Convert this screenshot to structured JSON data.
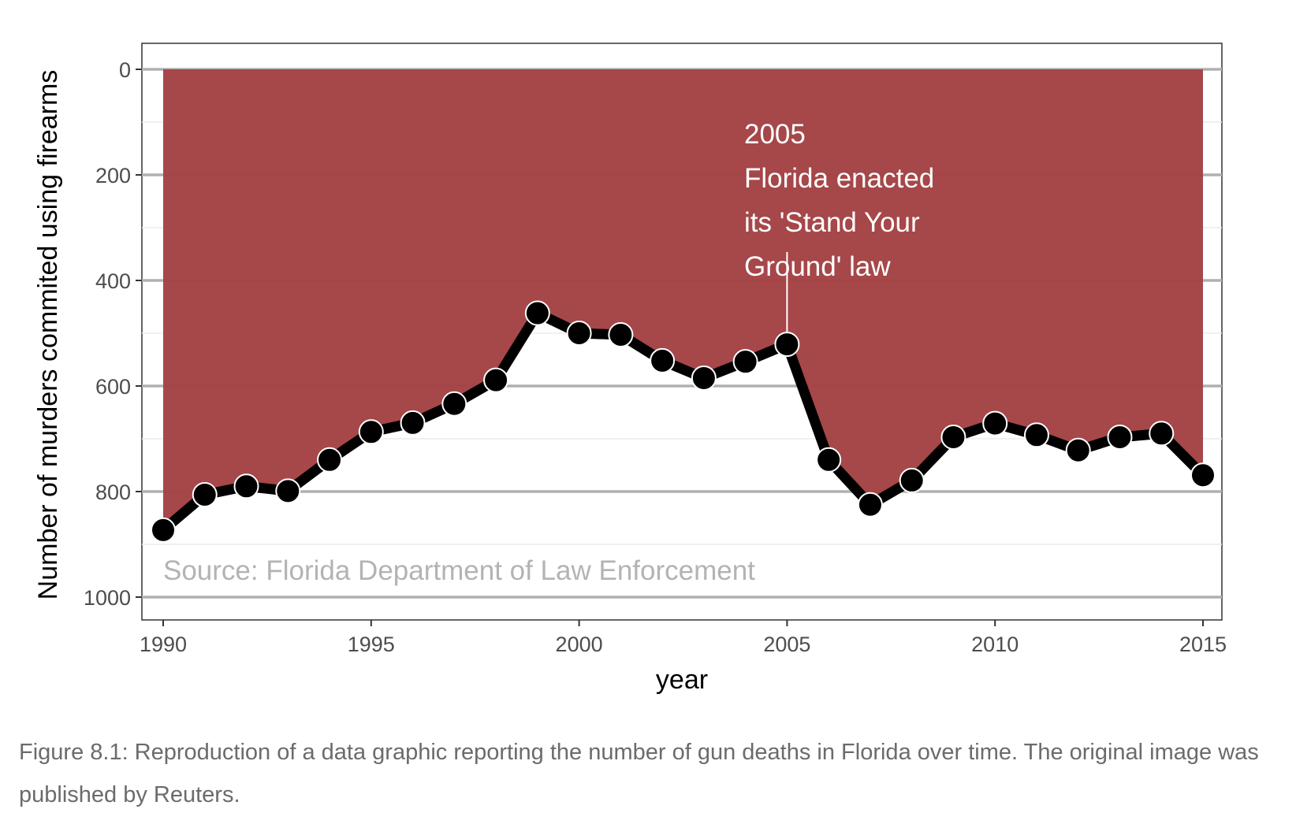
{
  "chart_data": {
    "type": "area",
    "x": [
      1990,
      1991,
      1992,
      1993,
      1994,
      1995,
      1996,
      1997,
      1998,
      1999,
      2000,
      2001,
      2002,
      2003,
      2004,
      2005,
      2006,
      2007,
      2008,
      2009,
      2010,
      2011,
      2012,
      2013,
      2014,
      2015
    ],
    "y": [
      873,
      806,
      790,
      799,
      740,
      687,
      670,
      634,
      589,
      462,
      500,
      503,
      552,
      585,
      554,
      521,
      740,
      825,
      779,
      697,
      671,
      693,
      722,
      697,
      690,
      769
    ],
    "xlabel": "year",
    "ylabel": "Number of murders commited using firearms",
    "xlim": [
      1990,
      2015
    ],
    "ylim": [
      0,
      1000
    ],
    "y_reversed": true,
    "x_ticks": [
      1990,
      1995,
      2000,
      2005,
      2010,
      2015
    ],
    "y_ticks": [
      0,
      200,
      400,
      600,
      800,
      1000
    ],
    "grid": true,
    "fill_color": "#a34143",
    "line_color": "#000000",
    "annotation": {
      "x": 2005,
      "lines": [
        "2005",
        "Florida enacted",
        "its 'Stand Your",
        "Ground' law"
      ]
    },
    "source_note": "Source: Florida Department of Law Enforcement"
  },
  "caption": "Figure 8.1: Reproduction of a data graphic reporting the number of gun deaths in Florida over time. The original image was published by Reuters."
}
